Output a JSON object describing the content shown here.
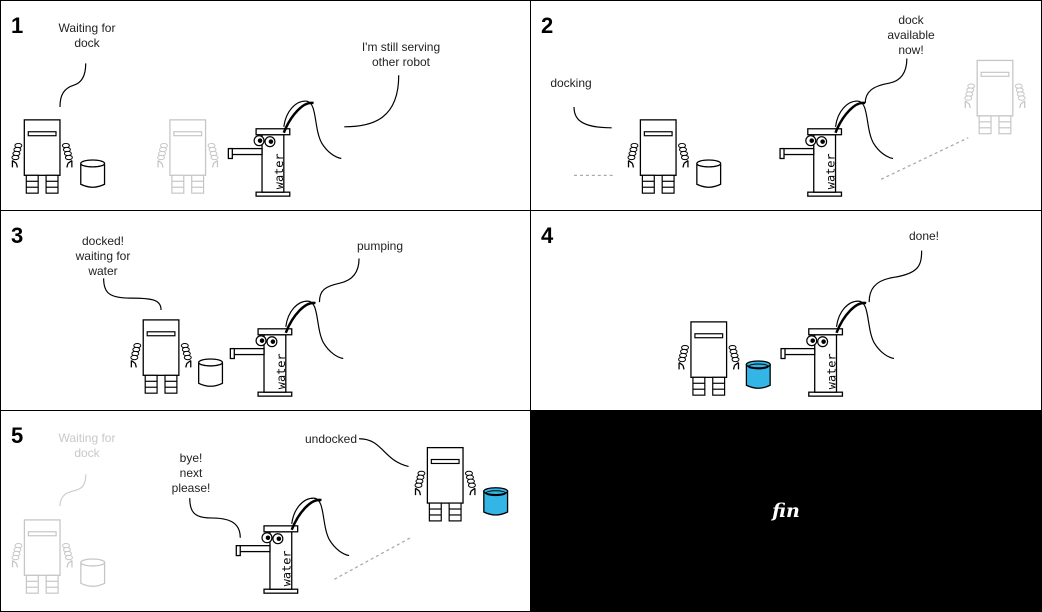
{
  "panels": [
    {
      "number": "1",
      "labels": {
        "waiting": "Waiting for\ndock",
        "serving": "I'm still serving\nother robot"
      }
    },
    {
      "number": "2",
      "labels": {
        "docking": "docking",
        "available": "dock\navailable\nnow!"
      }
    },
    {
      "number": "3",
      "labels": {
        "docked": "docked!\nwaiting for\nwater",
        "pumping": "pumping"
      }
    },
    {
      "number": "4",
      "labels": {
        "done": "done!"
      }
    },
    {
      "number": "5",
      "labels": {
        "waiting": "Waiting for\ndock",
        "bye": "bye!\nnext\nplease!",
        "undocked": "undocked"
      }
    },
    {
      "number": "",
      "labels": {
        "fin": "fin"
      }
    }
  ],
  "pump_label": "water",
  "colors": {
    "water": "#33b5e5",
    "faded": "#c8c8c8",
    "ink": "#000000",
    "end_panel_bg": "#000000"
  }
}
